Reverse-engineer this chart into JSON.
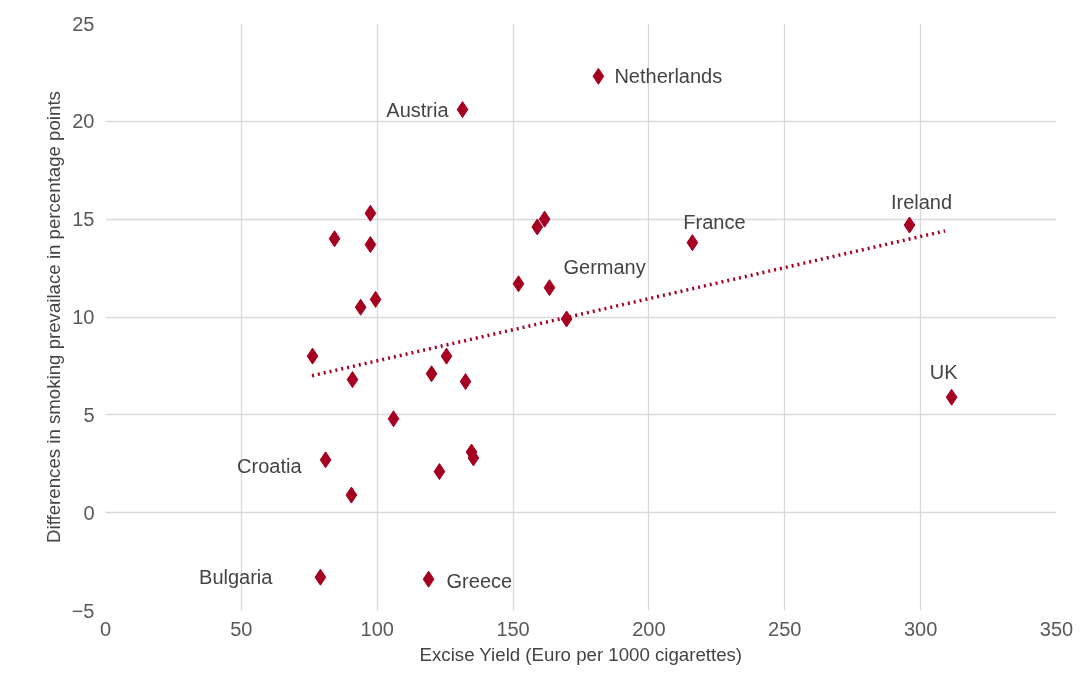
{
  "chart_data": {
    "type": "scatter",
    "xlabel": "Excise Yield (Euro per 1000 cigarettes)",
    "ylabel": "Differences in smoking prevailace in percentage points",
    "xlim": [
      0,
      350
    ],
    "xticks": [
      0,
      50,
      100,
      150,
      200,
      250,
      300,
      350
    ],
    "ylim": [
      -5,
      25
    ],
    "yticks": [
      -5,
      0,
      5,
      10,
      15,
      20,
      25
    ],
    "grid": true,
    "series": [
      {
        "color": "#a50021",
        "marker": "diamond",
        "x": [
          181.4,
          131.4,
          295.9,
          216,
          311.4,
          163.4,
          169.7,
          152,
          158.9,
          161.6,
          97.5,
          84.3,
          97.5,
          99.4,
          93.9,
          76.2,
          90.9,
          125.5,
          120,
          132.5,
          106,
          81,
          134.7,
          135.4,
          122.9,
          90.5,
          79.1,
          118.9
        ],
        "values": [
          22.3,
          20.6,
          14.7,
          13.8,
          5.9,
          11.5,
          9.9,
          11.7,
          14.6,
          15.0,
          15.3,
          14.0,
          13.7,
          10.9,
          10.5,
          8.0,
          6.8,
          8.0,
          7.1,
          6.7,
          4.8,
          2.7,
          3.1,
          2.8,
          2.1,
          0.9,
          -3.3,
          -3.4
        ]
      },
      {
        "type": "line",
        "color": "#a50021",
        "line_style": "dotted",
        "marker": "none",
        "x": [
          76,
          309
        ],
        "values": [
          7.0,
          14.4
        ]
      }
    ],
    "annotations": [
      {
        "text": "Netherlands",
        "x": 181.4,
        "y": 22.3
      },
      {
        "text": "Austria",
        "x": 131.4,
        "y": 20.6
      },
      {
        "text": "Ireland",
        "x": 295.9,
        "y": 14.7
      },
      {
        "text": "France",
        "x": 216,
        "y": 13.8
      },
      {
        "text": "UK",
        "x": 311.4,
        "y": 5.9
      },
      {
        "text": "Germany",
        "x": 163.4,
        "y": 11.5
      },
      {
        "text": "Croatia",
        "x": 81,
        "y": 2.7
      },
      {
        "text": "Bulgaria",
        "x": 79.1,
        "y": -3.3
      },
      {
        "text": "Greece",
        "x": 118.9,
        "y": -3.4
      }
    ]
  }
}
